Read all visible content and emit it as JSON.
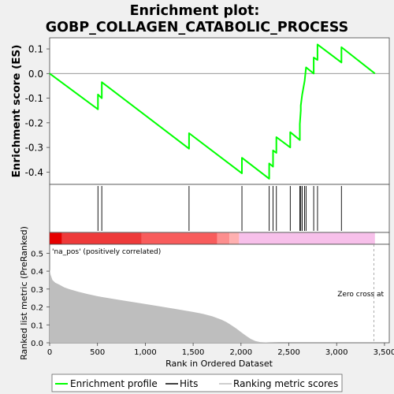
{
  "chart_data": {
    "type": "line",
    "title_lines": [
      "Enrichment plot:",
      "GOBP_COLLAGEN_CATABOLIC_PROCESS"
    ],
    "top_panel": {
      "ylabel": "Enrichment score (ES)",
      "ylim": [
        -0.45,
        0.145
      ],
      "yticks": [
        0.1,
        0.0,
        -0.1,
        -0.2,
        -0.3,
        -0.4
      ],
      "ytick_labels": [
        "0.1",
        "0.0",
        "-0.1",
        "-0.2",
        "-0.3",
        "-0.4"
      ],
      "series": [
        {
          "name": "Enrichment profile",
          "color": "#00ff00",
          "x": [
            0,
            505,
            505,
            545,
            545,
            1457,
            1457,
            2010,
            2010,
            2295,
            2295,
            2335,
            2335,
            2370,
            2370,
            2515,
            2515,
            2615,
            2615,
            2625,
            2625,
            2640,
            2640,
            2665,
            2665,
            2680,
            2680,
            2760,
            2760,
            2800,
            2800,
            3050,
            3050,
            3400
          ],
          "y": [
            0.0,
            -0.145,
            -0.085,
            -0.1,
            -0.035,
            -0.305,
            -0.242,
            -0.405,
            -0.342,
            -0.427,
            -0.365,
            -0.378,
            -0.312,
            -0.322,
            -0.258,
            -0.3,
            -0.238,
            -0.27,
            -0.205,
            -0.15,
            -0.13,
            -0.085,
            -0.085,
            -0.03,
            -0.03,
            0.025,
            0.025,
            0.0,
            0.065,
            0.055,
            0.118,
            0.045,
            0.107,
            0.0
          ]
        }
      ]
    },
    "hits": {
      "x": [
        505,
        545,
        1457,
        2010,
        2295,
        2335,
        2370,
        2515,
        2615,
        2625,
        2640,
        2665,
        2680,
        2760,
        2800,
        3050
      ],
      "color": "#000000"
    },
    "color_bar": {
      "segments": [
        {
          "from": 0,
          "to": 130,
          "color": "#e60000"
        },
        {
          "from": 130,
          "to": 960,
          "color": "#ee3a3a"
        },
        {
          "from": 960,
          "to": 1750,
          "color": "#f85c5c"
        },
        {
          "from": 1750,
          "to": 1880,
          "color": "#fd8e8e"
        },
        {
          "from": 1880,
          "to": 1980,
          "color": "#ffb0b0"
        },
        {
          "from": 1980,
          "to": 3400,
          "color": "#f7c0ea"
        }
      ]
    },
    "bottom_panel": {
      "ylabel": "Ranked list metric (PreRanked)",
      "xlabel": "Rank in Ordered Dataset",
      "xlim": [
        0,
        3550
      ],
      "ylim": [
        0,
        0.55
      ],
      "xticks": [
        0,
        500,
        1000,
        1500,
        2000,
        2500,
        3000,
        3500
      ],
      "xtick_labels": [
        "0",
        "500",
        "1,000",
        "1,500",
        "2,000",
        "2,500",
        "3,000",
        "3,500"
      ],
      "yticks": [
        0.0,
        0.1,
        0.2,
        0.3,
        0.4,
        0.5
      ],
      "ytick_labels": [
        "0.0",
        "0.1",
        "0.2",
        "0.3",
        "0.4",
        "0.5"
      ],
      "metric": {
        "x": [
          0,
          10,
          30,
          60,
          100,
          150,
          200,
          300,
          400,
          500,
          700,
          900,
          1100,
          1300,
          1500,
          1600,
          1700,
          1800,
          1850,
          1900,
          1950,
          2000,
          2050,
          2100,
          2150,
          2200,
          2300,
          2400,
          3400
        ],
        "y": [
          0.41,
          0.38,
          0.35,
          0.335,
          0.325,
          0.31,
          0.3,
          0.285,
          0.272,
          0.26,
          0.242,
          0.225,
          0.208,
          0.19,
          0.172,
          0.162,
          0.148,
          0.128,
          0.115,
          0.098,
          0.08,
          0.06,
          0.04,
          0.022,
          0.01,
          0.004,
          0.001,
          0.0,
          0.0
        ]
      },
      "metric_color": "#bebebe",
      "annotation_label": "'na_pos' (positively correlated)",
      "annotation_color": "#e60000",
      "zero_cross_label": "Zero cross at",
      "zero_cross_x": 3390
    },
    "legend": {
      "items": [
        {
          "label": "Enrichment profile",
          "color": "#00ff00"
        },
        {
          "label": "Hits",
          "color": "#000000"
        },
        {
          "label": "Ranking metric scores",
          "color": "#bebebe"
        }
      ]
    }
  }
}
